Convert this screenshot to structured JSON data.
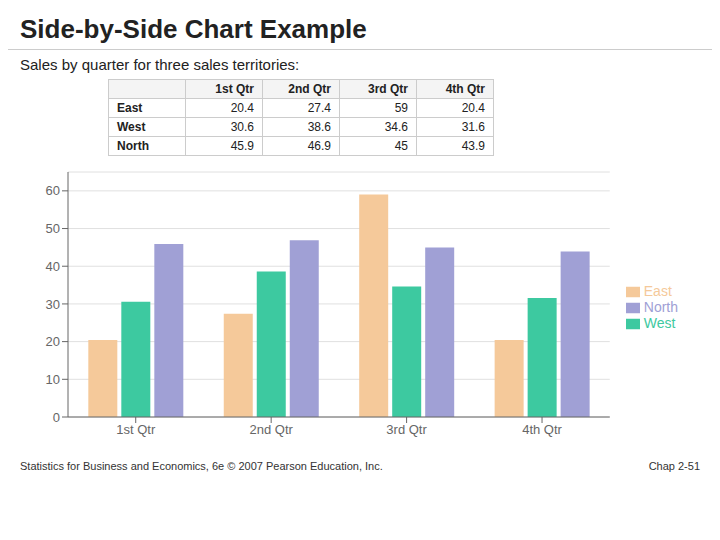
{
  "chart_data": {
    "type": "bar",
    "title": "Side-by-Side Chart Example",
    "subtitle": "Sales by quarter for three sales territories:",
    "annotations": [
      "Statistics for Business and Economics, 6e © 2007 Pearson Education, Inc.",
      "Chap 2-51"
    ],
    "categories": [
      "1st Qtr",
      "2nd Qtr",
      "3rd Qtr",
      "4th Qtr"
    ],
    "series": [
      {
        "name": "East",
        "color": "#F5C99A",
        "values": [
          20.4,
          27.4,
          59.0,
          20.4
        ]
      },
      {
        "name": "West",
        "color": "#3DC9A0",
        "values": [
          30.6,
          38.6,
          34.6,
          31.6
        ]
      },
      {
        "name": "North",
        "color": "#A0A0D5",
        "values": [
          45.9,
          46.9,
          45.0,
          43.9
        ]
      }
    ],
    "ylim": [
      0,
      65
    ],
    "yticks": [
      0,
      10,
      20,
      30,
      40,
      50,
      60
    ],
    "grid": true,
    "legend": "right"
  }
}
